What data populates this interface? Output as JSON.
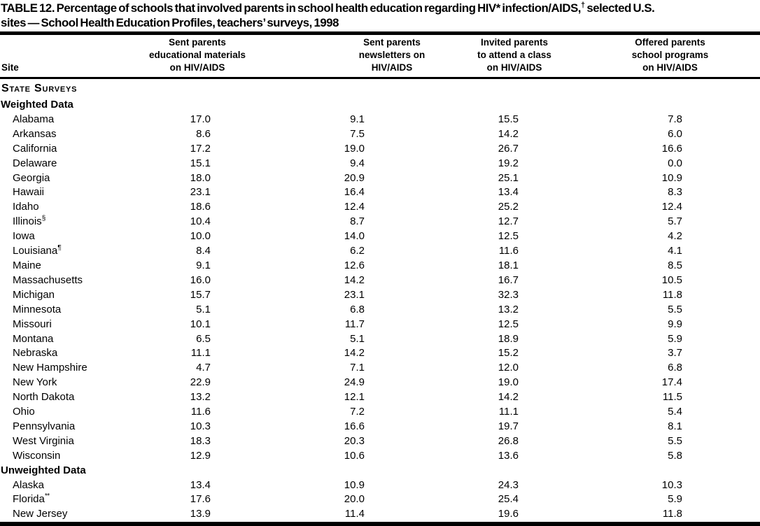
{
  "document": {
    "title": {
      "line1_parts": [
        {
          "text": "TABLE 12. Percentage of schools that involved parents in school health education regarding HIV* infection/AIDS,"
        },
        {
          "text": "†",
          "sup": true
        },
        {
          "text": " selected U.S."
        }
      ],
      "line2": "sites — School Health Education Profiles, teachers’ surveys, 1998"
    }
  },
  "table": {
    "header": {
      "site": "Site",
      "columns": [
        {
          "lines": [
            "Sent parents",
            "educational materials",
            "on HIV/AIDS"
          ]
        },
        {
          "lines": [
            "Sent parents",
            "newsletters on",
            "HIV/AIDS"
          ]
        },
        {
          "lines": [
            "Invited parents",
            "to attend a class",
            "on HIV/AIDS"
          ]
        },
        {
          "lines": [
            "Offered parents",
            "school programs",
            "on HIV/AIDS"
          ]
        }
      ]
    },
    "sections": [
      {
        "label": "State Surveys",
        "groups": [
          {
            "label": "Weighted Data",
            "rows": [
              {
                "site": "Alabama",
                "sup": "",
                "values": [
                  "17.0",
                  "9.1",
                  "15.5",
                  "7.8"
                ]
              },
              {
                "site": "Arkansas",
                "sup": "",
                "values": [
                  "8.6",
                  "7.5",
                  "14.2",
                  "6.0"
                ]
              },
              {
                "site": "California",
                "sup": "",
                "values": [
                  "17.2",
                  "19.0",
                  "26.7",
                  "16.6"
                ]
              },
              {
                "site": "Delaware",
                "sup": "",
                "values": [
                  "15.1",
                  "9.4",
                  "19.2",
                  "0.0"
                ]
              },
              {
                "site": "Georgia",
                "sup": "",
                "values": [
                  "18.0",
                  "20.9",
                  "25.1",
                  "10.9"
                ]
              },
              {
                "site": "Hawaii",
                "sup": "",
                "values": [
                  "23.1",
                  "16.4",
                  "13.4",
                  "8.3"
                ]
              },
              {
                "site": "Idaho",
                "sup": "",
                "values": [
                  "18.6",
                  "12.4",
                  "25.2",
                  "12.4"
                ]
              },
              {
                "site": "Illinois",
                "sup": "§",
                "values": [
                  "10.4",
                  "8.7",
                  "12.7",
                  "5.7"
                ]
              },
              {
                "site": "Iowa",
                "sup": "",
                "values": [
                  "10.0",
                  "14.0",
                  "12.5",
                  "4.2"
                ]
              },
              {
                "site": "Louisiana",
                "sup": "¶",
                "values": [
                  "8.4",
                  "6.2",
                  "11.6",
                  "4.1"
                ]
              },
              {
                "site": "Maine",
                "sup": "",
                "values": [
                  "9.1",
                  "12.6",
                  "18.1",
                  "8.5"
                ]
              },
              {
                "site": "Massachusetts",
                "sup": "",
                "values": [
                  "16.0",
                  "14.2",
                  "16.7",
                  "10.5"
                ]
              },
              {
                "site": "Michigan",
                "sup": "",
                "values": [
                  "15.7",
                  "23.1",
                  "32.3",
                  "11.8"
                ]
              },
              {
                "site": "Minnesota",
                "sup": "",
                "values": [
                  "5.1",
                  "6.8",
                  "13.2",
                  "5.5"
                ]
              },
              {
                "site": "Missouri",
                "sup": "",
                "values": [
                  "10.1",
                  "11.7",
                  "12.5",
                  "9.9"
                ]
              },
              {
                "site": "Montana",
                "sup": "",
                "values": [
                  "6.5",
                  "5.1",
                  "18.9",
                  "5.9"
                ]
              },
              {
                "site": "Nebraska",
                "sup": "",
                "values": [
                  "11.1",
                  "14.2",
                  "15.2",
                  "3.7"
                ]
              },
              {
                "site": "New Hampshire",
                "sup": "",
                "values": [
                  "4.7",
                  "7.1",
                  "12.0",
                  "6.8"
                ]
              },
              {
                "site": "New York",
                "sup": "",
                "values": [
                  "22.9",
                  "24.9",
                  "19.0",
                  "17.4"
                ]
              },
              {
                "site": "North Dakota",
                "sup": "",
                "values": [
                  "13.2",
                  "12.1",
                  "14.2",
                  "11.5"
                ]
              },
              {
                "site": "Ohio",
                "sup": "",
                "values": [
                  "11.6",
                  "7.2",
                  "11.1",
                  "5.4"
                ]
              },
              {
                "site": "Pennsylvania",
                "sup": "",
                "values": [
                  "10.3",
                  "16.6",
                  "19.7",
                  "8.1"
                ]
              },
              {
                "site": "West Virginia",
                "sup": "",
                "values": [
                  "18.3",
                  "20.3",
                  "26.8",
                  "5.5"
                ]
              },
              {
                "site": "Wisconsin",
                "sup": "",
                "values": [
                  "12.9",
                  "10.6",
                  "13.6",
                  "5.8"
                ]
              }
            ]
          },
          {
            "label": "Unweighted Data",
            "rows": [
              {
                "site": "Alaska",
                "sup": "",
                "values": [
                  "13.4",
                  "10.9",
                  "24.3",
                  "10.3"
                ]
              },
              {
                "site": "Florida",
                "sup": "**",
                "values": [
                  "17.6",
                  "20.0",
                  "25.4",
                  "5.9"
                ]
              },
              {
                "site": "New Jersey",
                "sup": "",
                "values": [
                  "13.9",
                  "11.4",
                  "19.6",
                  "11.8"
                ]
              }
            ]
          }
        ]
      }
    ]
  }
}
